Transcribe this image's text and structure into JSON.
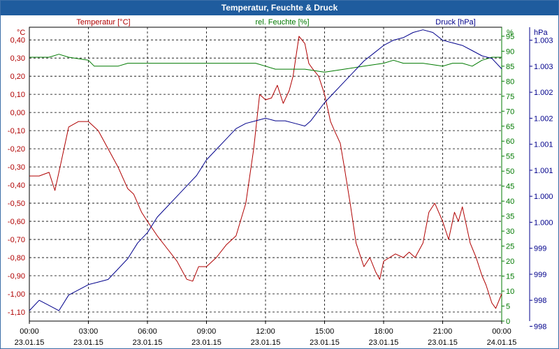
{
  "window": {
    "title": "Temperatur, Feuchte & Druck"
  },
  "colors": {
    "temperature": "#b00000",
    "humidity": "#007a00",
    "pressure": "#00008b",
    "axis": "#000000",
    "grid": "#000000"
  },
  "chart_data": {
    "type": "line",
    "title": "Temperatur, Feuchte & Druck",
    "grid": true,
    "x_ticks": [
      {
        "time": "00:00",
        "date": "23.01.15"
      },
      {
        "time": "03:00",
        "date": "23.01.15"
      },
      {
        "time": "06:00",
        "date": "23.01.15"
      },
      {
        "time": "09:00",
        "date": "23.01.15"
      },
      {
        "time": "12:00",
        "date": "23.01.15"
      },
      {
        "time": "15:00",
        "date": "23.01.15"
      },
      {
        "time": "18:00",
        "date": "23.01.15"
      },
      {
        "time": "21:00",
        "date": "23.01.15"
      },
      {
        "time": "00:00",
        "date": "24.01.15"
      }
    ],
    "xlim_hours": [
      0,
      24
    ],
    "axes": {
      "temperature": {
        "unit": "°C",
        "label": "Temperatur [°C]",
        "ylim": [
          -1.15,
          0.47
        ],
        "ticks": [
          "0,40",
          "0,30",
          "0,20",
          "0,10",
          "0,00",
          "-0,10",
          "-0,20",
          "-0,30",
          "-0,40",
          "-0,50",
          "-0,60",
          "-0,70",
          "-0,80",
          "-0,90",
          "-1,00",
          "-1,10"
        ],
        "tick_values": [
          0.4,
          0.3,
          0.2,
          0.1,
          0.0,
          -0.1,
          -0.2,
          -0.3,
          -0.4,
          -0.5,
          -0.6,
          -0.7,
          -0.8,
          -0.9,
          -1.0,
          -1.1
        ]
      },
      "humidity": {
        "unit": "%",
        "label": "rel. Feuchte [%]",
        "ylim": [
          0,
          98
        ],
        "ticks": [
          "95",
          "90",
          "85",
          "80",
          "75",
          "70",
          "65",
          "60",
          "55",
          "50",
          "45",
          "40",
          "35",
          "30",
          "25",
          "20",
          "15",
          "10",
          "5",
          "0"
        ],
        "tick_values": [
          95,
          90,
          85,
          80,
          75,
          70,
          65,
          60,
          55,
          50,
          45,
          40,
          35,
          30,
          25,
          20,
          15,
          10,
          5,
          0
        ]
      },
      "pressure": {
        "unit": "hPa",
        "label": "Druck [hPa]",
        "ylim": [
          997.6,
          1003.25
        ],
        "ticks": [
          "1.003",
          "1.003",
          "1.002",
          "1.002",
          "1.001",
          "1.001",
          "1.000",
          "1.000",
          "999",
          "999",
          "998",
          "998"
        ],
        "tick_values": [
          1003.0,
          1002.5,
          1002.0,
          1001.5,
          1001.0,
          1000.5,
          1000.0,
          999.5,
          999.0,
          998.5,
          998.0,
          997.5
        ]
      }
    },
    "series": [
      {
        "name": "Temperatur [°C]",
        "axis": "temperature",
        "color": "#b00000",
        "x": [
          0,
          0.5,
          1,
          1.3,
          1.6,
          2,
          2.5,
          3,
          3.3,
          3.5,
          4,
          4.5,
          5,
          5.3,
          5.7,
          6,
          6.5,
          7,
          7.5,
          8,
          8.3,
          8.6,
          9,
          9.5,
          10,
          10.5,
          11,
          11.4,
          11.7,
          12,
          12.3,
          12.6,
          12.9,
          13.2,
          13.4,
          13.7,
          14,
          14.2,
          14.4,
          14.7,
          15,
          15.3,
          15.5,
          15.8,
          16,
          16.3,
          16.6,
          17,
          17.3,
          17.6,
          17.8,
          18,
          18.3,
          18.6,
          19,
          19.3,
          19.6,
          20,
          20.3,
          20.6,
          21,
          21.3,
          21.6,
          21.8,
          22,
          22.4,
          22.7,
          23,
          23.2,
          23.5,
          23.7,
          24
        ],
        "values": [
          -0.35,
          -0.35,
          -0.33,
          -0.43,
          -0.28,
          -0.08,
          -0.05,
          -0.05,
          -0.08,
          -0.1,
          -0.2,
          -0.3,
          -0.42,
          -0.45,
          -0.55,
          -0.6,
          -0.68,
          -0.75,
          -0.82,
          -0.92,
          -0.93,
          -0.85,
          -0.85,
          -0.8,
          -0.73,
          -0.68,
          -0.5,
          -0.2,
          0.1,
          0.07,
          0.08,
          0.15,
          0.05,
          0.12,
          0.2,
          0.42,
          0.38,
          0.27,
          0.24,
          0.2,
          0.1,
          -0.05,
          -0.1,
          -0.17,
          -0.3,
          -0.5,
          -0.72,
          -0.85,
          -0.8,
          -0.88,
          -0.92,
          -0.82,
          -0.8,
          -0.78,
          -0.8,
          -0.77,
          -0.8,
          -0.72,
          -0.55,
          -0.5,
          -0.6,
          -0.7,
          -0.55,
          -0.6,
          -0.52,
          -0.72,
          -0.8,
          -0.9,
          -0.95,
          -1.05,
          -1.08,
          -1.0
        ]
      },
      {
        "name": "rel. Feuchte [%]",
        "axis": "humidity",
        "color": "#007a00",
        "x": [
          0,
          1,
          1.5,
          2,
          3,
          3.3,
          3.5,
          4,
          4.5,
          5,
          6,
          7,
          8,
          9,
          10,
          11,
          11.5,
          12,
          12.5,
          13,
          14,
          15,
          16,
          17,
          18,
          18.5,
          19,
          19.5,
          20,
          21,
          21.5,
          22,
          22.5,
          23,
          23.5,
          24
        ],
        "values": [
          88,
          88,
          89,
          88,
          87,
          85,
          85,
          85,
          85,
          86,
          86,
          86,
          86,
          86,
          86,
          86,
          86,
          85,
          84,
          84,
          84,
          83,
          84,
          85,
          86,
          87,
          86,
          86,
          86,
          85,
          86,
          86,
          85,
          87,
          88,
          88
        ]
      },
      {
        "name": "Druck [hPa]",
        "axis": "pressure",
        "color": "#00008b",
        "x": [
          0,
          0.5,
          1,
          1.5,
          2,
          2.5,
          3,
          3.5,
          4,
          4.5,
          5,
          5.5,
          6,
          6.5,
          7,
          7.5,
          8,
          8.5,
          9,
          9.5,
          10,
          10.5,
          11,
          11.5,
          12,
          12.5,
          13,
          13.5,
          14,
          14.3,
          14.6,
          15,
          15.5,
          16,
          16.5,
          17,
          17.5,
          18,
          18.5,
          19,
          19.5,
          20,
          20.5,
          21,
          21.5,
          22,
          22.5,
          23,
          23.5,
          24
        ],
        "values": [
          997.8,
          998.0,
          997.9,
          997.8,
          998.1,
          998.2,
          998.3,
          998.35,
          998.4,
          998.6,
          998.8,
          999.1,
          999.3,
          999.6,
          999.8,
          1000.0,
          1000.2,
          1000.4,
          1000.7,
          1000.9,
          1001.1,
          1001.3,
          1001.4,
          1001.45,
          1001.5,
          1001.45,
          1001.45,
          1001.4,
          1001.35,
          1001.45,
          1001.6,
          1001.8,
          1002.0,
          1002.2,
          1002.4,
          1002.6,
          1002.75,
          1002.9,
          1003.0,
          1003.05,
          1003.15,
          1003.2,
          1003.15,
          1003.0,
          1002.95,
          1002.9,
          1002.8,
          1002.7,
          1002.65,
          1002.45
        ]
      }
    ]
  }
}
